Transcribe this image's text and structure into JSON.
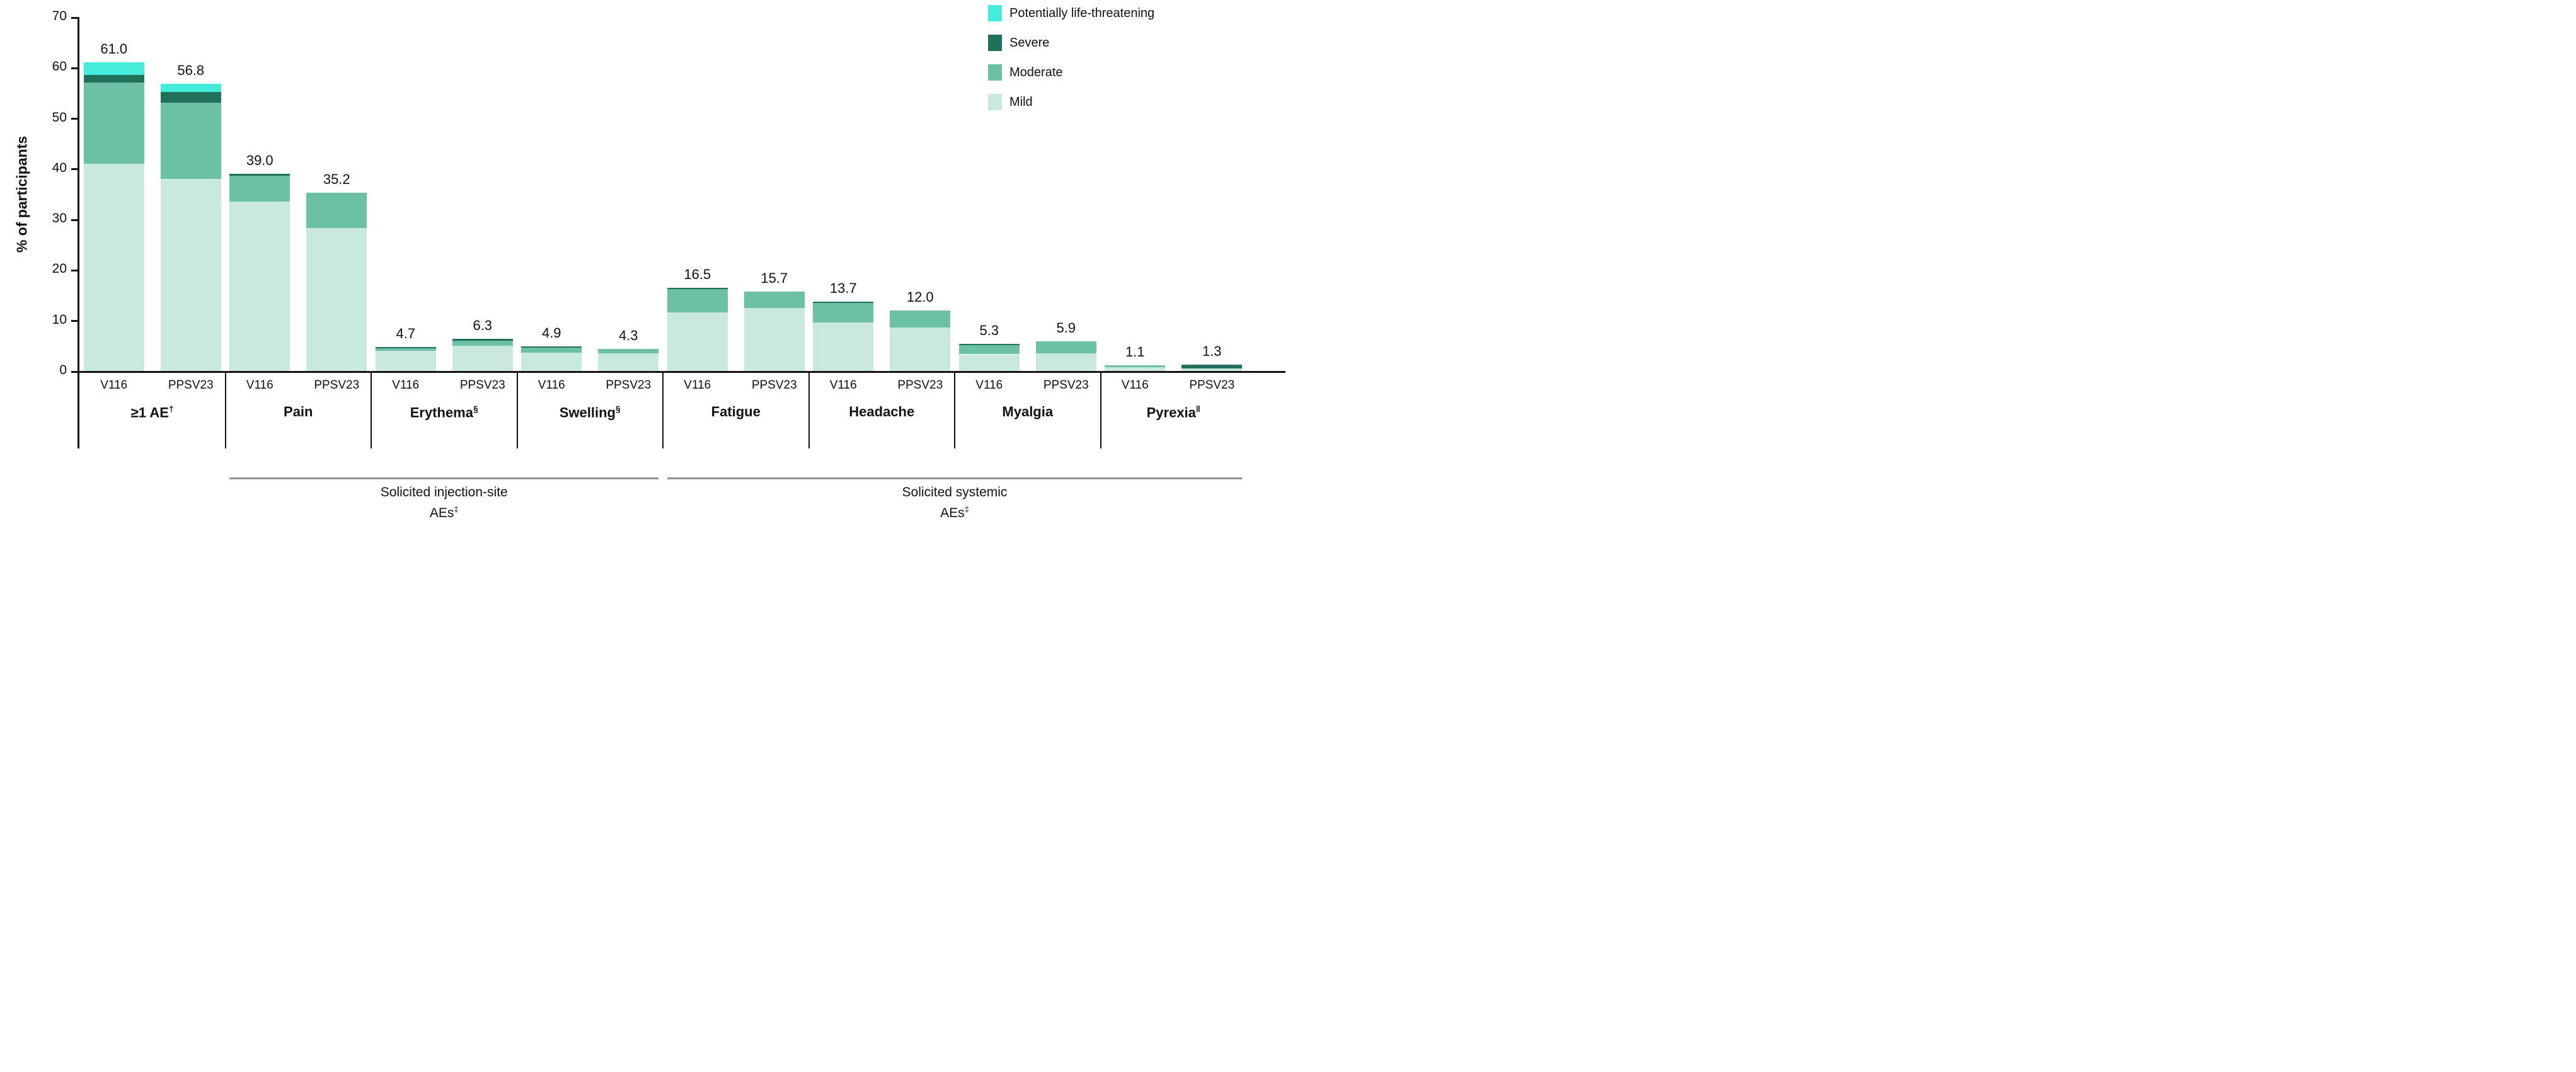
{
  "chart_data": {
    "type": "stacked-bar",
    "ylabel": "% of participants",
    "ylim": [
      0,
      70
    ],
    "yticks": [
      0,
      10,
      20,
      30,
      40,
      50,
      60,
      70
    ],
    "grid": false,
    "legend_position": "top-right",
    "severity_order": [
      "mild",
      "moderate",
      "severe",
      "plt"
    ],
    "severity_colors": {
      "mild": "#C8E9DB",
      "moderate": "#6CC0A5",
      "severe": "#21705B",
      "plt": "#45ECD9"
    },
    "legend": [
      {
        "key": "plt",
        "label": "Potentially life-threatening"
      },
      {
        "key": "severe",
        "label": "Severe"
      },
      {
        "key": "moderate",
        "label": "Moderate"
      },
      {
        "key": "mild",
        "label": "Mild"
      }
    ],
    "arms": [
      "V116",
      "PPSV23"
    ],
    "categories": [
      {
        "label": "≥1 AE",
        "sup": "†",
        "bars": [
          {
            "arm": "V116",
            "total": "61.0",
            "segments": {
              "mild": 41.0,
              "moderate": 16.0,
              "severe": 1.5,
              "plt": 2.5
            }
          },
          {
            "arm": "PPSV23",
            "total": "56.8",
            "segments": {
              "mild": 38.0,
              "moderate": 15.1,
              "severe": 2.1,
              "plt": 1.6
            }
          }
        ]
      },
      {
        "label": "Pain",
        "sup": "",
        "bars": [
          {
            "arm": "V116",
            "total": "39.0",
            "segments": {
              "mild": 33.5,
              "moderate": 5.1,
              "severe": 0.4,
              "plt": 0
            }
          },
          {
            "arm": "PPSV23",
            "total": "35.2",
            "segments": {
              "mild": 28.3,
              "moderate": 6.9,
              "severe": 0,
              "plt": 0
            }
          }
        ]
      },
      {
        "label": "Erythema",
        "sup": "§",
        "bars": [
          {
            "arm": "V116",
            "total": "4.7",
            "segments": {
              "mild": 4.0,
              "moderate": 0.5,
              "severe": 0.2,
              "plt": 0
            }
          },
          {
            "arm": "PPSV23",
            "total": "6.3",
            "segments": {
              "mild": 5.0,
              "moderate": 1.0,
              "severe": 0.3,
              "plt": 0
            }
          }
        ]
      },
      {
        "label": "Swelling",
        "sup": "§",
        "bars": [
          {
            "arm": "V116",
            "total": "4.9",
            "segments": {
              "mild": 3.6,
              "moderate": 1.0,
              "severe": 0.3,
              "plt": 0
            }
          },
          {
            "arm": "PPSV23",
            "total": "4.3",
            "segments": {
              "mild": 3.5,
              "moderate": 0.8,
              "severe": 0,
              "plt": 0
            }
          }
        ]
      },
      {
        "label": "Fatigue",
        "sup": "",
        "bars": [
          {
            "arm": "V116",
            "total": "16.5",
            "segments": {
              "mild": 11.6,
              "moderate": 4.6,
              "severe": 0.3,
              "plt": 0
            }
          },
          {
            "arm": "PPSV23",
            "total": "15.7",
            "segments": {
              "mild": 12.4,
              "moderate": 3.3,
              "severe": 0,
              "plt": 0
            }
          }
        ]
      },
      {
        "label": "Headache",
        "sup": "",
        "bars": [
          {
            "arm": "V116",
            "total": "13.7",
            "segments": {
              "mild": 9.6,
              "moderate": 3.9,
              "severe": 0.2,
              "plt": 0
            }
          },
          {
            "arm": "PPSV23",
            "total": "12.0",
            "segments": {
              "mild": 8.6,
              "moderate": 3.4,
              "severe": 0,
              "plt": 0
            }
          }
        ]
      },
      {
        "label": "Myalgia",
        "sup": "",
        "bars": [
          {
            "arm": "V116",
            "total": "5.3",
            "segments": {
              "mild": 3.3,
              "moderate": 1.8,
              "severe": 0.2,
              "plt": 0
            }
          },
          {
            "arm": "PPSV23",
            "total": "5.9",
            "segments": {
              "mild": 3.5,
              "moderate": 2.4,
              "severe": 0,
              "plt": 0
            }
          }
        ]
      },
      {
        "label": "Pyrexia",
        "sup": "‖",
        "bars": [
          {
            "arm": "V116",
            "total": "1.1",
            "segments": {
              "mild": 0.8,
              "moderate": 0.3,
              "severe": 0,
              "plt": 0
            }
          },
          {
            "arm": "PPSV23",
            "total": "1.3",
            "segments": {
              "mild": 0.5,
              "moderate": 0,
              "severe": 0.8,
              "plt": 0
            }
          }
        ]
      }
    ],
    "group_brackets": [
      {
        "from": 1,
        "to": 3,
        "line1": "Solicited injection-site",
        "line2": "AEs‡"
      },
      {
        "from": 4,
        "to": 7,
        "line1": "Solicited systemic",
        "line2": "AEs‡"
      }
    ]
  }
}
